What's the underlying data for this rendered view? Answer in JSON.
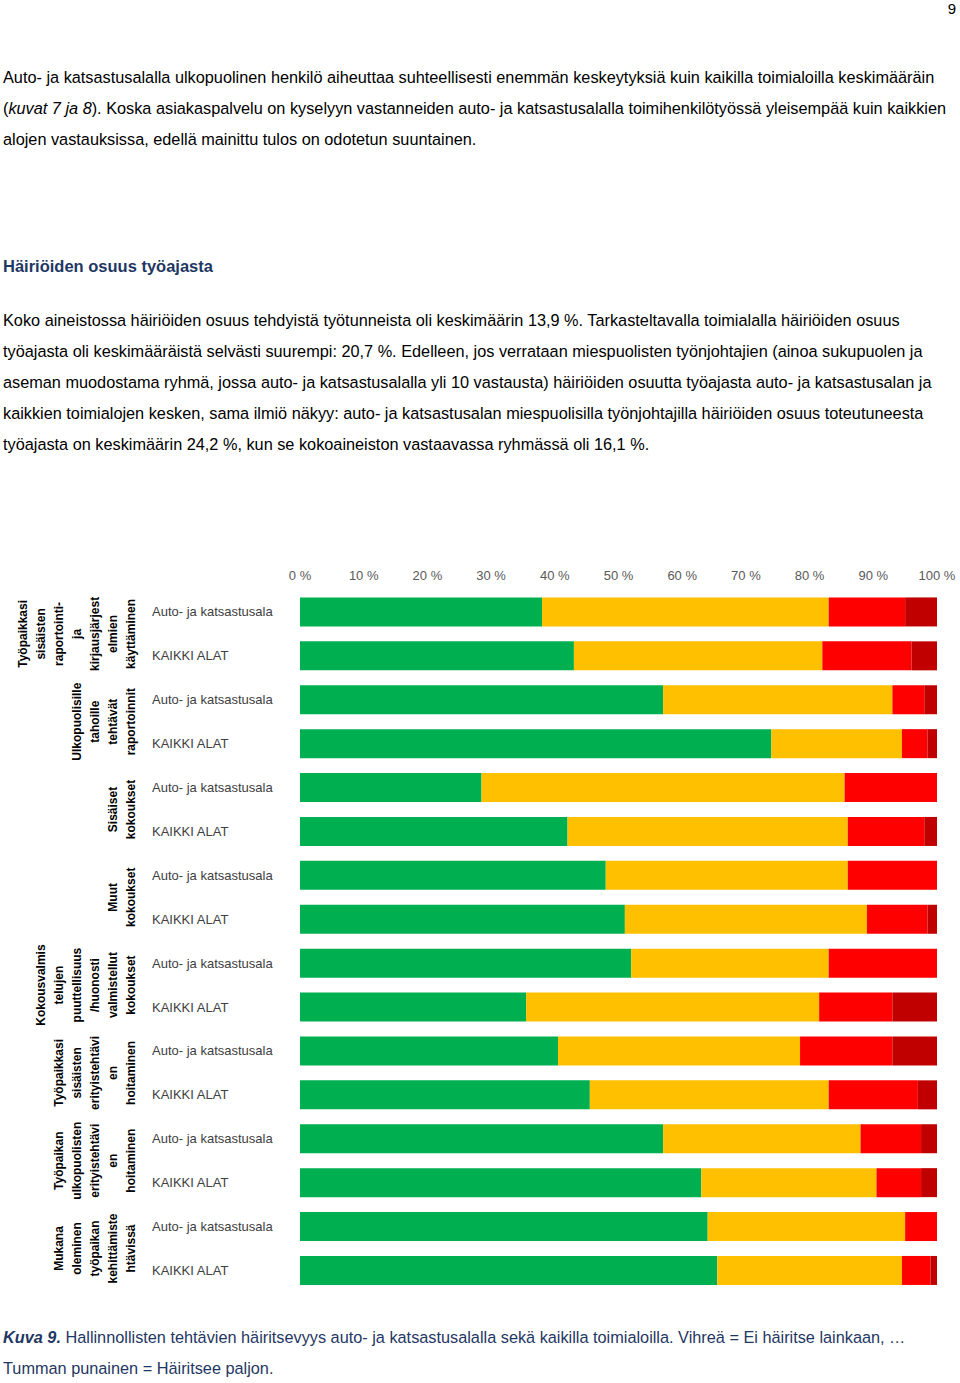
{
  "page": {
    "number": "9",
    "paragraph_1": [
      {
        "text": "Auto- ja katsastusalalla ulkopuolinen henkilö aiheuttaa suhteellisesti enemmän keskeytyksiä kuin kaikilla toimialoilla keskimääräin ("
      },
      {
        "text": "kuvat 7 ja 8",
        "italic": true
      },
      {
        "text": "). Koska asiakaspalvelu on kyselyyn vastanneiden auto- ja katsastusalalla toimihenkilötyössä yleisempää kuin kaikkien alojen vastauksissa, edellä mainittu tulos on odotetun suuntainen."
      }
    ],
    "heading": "Häiriöiden osuus työajasta",
    "paragraph_2": [
      {
        "text": "Koko aineistossa häiriöiden osuus tehdyistä työtunneista oli keskimäärin 13,9 %. Tarkasteltavalla toimialalla häiriöiden osuus työajasta oli keskimääräistä selvästi suurempi: 20,7 %. Edelleen, jos verrataan miespuolisten työnjohtajien (ainoa sukupuolen ja aseman muodostama ryhmä, jossa auto- ja katsastusalalla yli 10 vastausta) häiriöiden osuutta työajasta auto- ja katsastusalan ja kaikkien toimialojen kesken, sama ilmiö näkyy: auto- ja katsastusalan miespuolisilla työnjohtajilla häiriöiden osuus toteutuneesta työajasta on keskimäärin 24,2 %, kun se kokoaineiston vastaavassa ryhmässä oli 16,1 %."
      }
    ],
    "caption": [
      {
        "text": "Kuva 9.",
        "bold": true,
        "italic": true
      },
      {
        "text": " Hallinnollisten tehtävien häiritsevyys auto- ja katsastusalalla sekä kaikilla toimialoilla. Vihreä = Ei häiritse lainkaan, … Tumman punainen = Häiritsee paljon."
      }
    ]
  },
  "chart_data": {
    "type": "bar",
    "orientation": "horizontal",
    "stacked": true,
    "grid": false,
    "categories": [
      "Auto- ja katsastusala",
      "KAIKKI ALAT",
      "Auto- ja katsastusala",
      "KAIKKI ALAT",
      "Auto- ja katsastusala",
      "KAIKKI ALAT",
      "Auto- ja katsastusala",
      "KAIKKI ALAT",
      "Auto- ja katsastusala",
      "KAIKKI ALAT",
      "Auto- ja katsastusala",
      "KAIKKI ALAT",
      "Auto- ja katsastusala",
      "KAIKKI ALAT",
      "Auto- ja katsastusala",
      "KAIKKI ALAT"
    ],
    "category_groups": [
      {
        "label": [
          "Työpaikkasi",
          "sisäisten",
          "raportointi-",
          "ja",
          "kirjausjärjest",
          "elmien",
          "käyttäminen"
        ],
        "size": 2
      },
      {
        "label": [
          "Ulkopuolisille",
          "tahoille",
          "tehtävät",
          "raportoinnit"
        ],
        "size": 2
      },
      {
        "label": [
          "Sisäiset",
          "kokoukset"
        ],
        "size": 2
      },
      {
        "label": [
          "Muut",
          "kokoukset"
        ],
        "size": 2
      },
      {
        "label": [
          "Kokousvalmis",
          "telujen",
          "puuttellisuus",
          "/huonosti",
          "valmistellut",
          "kokoukset"
        ],
        "size": 2
      },
      {
        "label": [
          "Työpaikkasi",
          "sisäisten",
          "erityistehtävi",
          "en",
          "hoitaminen"
        ],
        "size": 2
      },
      {
        "label": [
          "Työpaikan",
          "ulkopuolisten",
          "erityistehtävi",
          "en",
          "hoitaminen"
        ],
        "size": 2
      },
      {
        "label": [
          "Mukana",
          "oleminen",
          "työpaikan",
          "kehittämiste",
          "htävissä"
        ],
        "size": 2
      }
    ],
    "series": [
      {
        "color": "#00B050",
        "values": [
          38,
          43,
          57,
          74,
          28.5,
          42,
          48,
          51,
          52,
          35.5,
          40.5,
          45.5,
          57,
          63,
          64,
          65.5
        ]
      },
      {
        "color": "#FFC000",
        "values": [
          45,
          39,
          36,
          20.5,
          57,
          44,
          38,
          38,
          31,
          46,
          38,
          37.5,
          31,
          27.5,
          31,
          29
        ]
      },
      {
        "color": "#FF0000",
        "values": [
          12,
          14,
          5,
          4,
          14.5,
          12,
          14,
          9.5,
          17,
          11.5,
          14.5,
          14,
          9.5,
          7,
          5,
          4.5
        ]
      },
      {
        "color": "#C00000",
        "values": [
          5,
          4,
          2,
          1.5,
          0,
          2,
          0,
          1.5,
          0,
          7,
          7,
          3,
          2.5,
          2.5,
          0,
          1
        ]
      }
    ],
    "xlim": [
      0,
      100
    ],
    "xticks": [
      {
        "value": 0,
        "label": "0 %"
      },
      {
        "value": 10,
        "label": "10 %"
      },
      {
        "value": 20,
        "label": "20 %"
      },
      {
        "value": 30,
        "label": "30 %"
      },
      {
        "value": 40,
        "label": "40 %"
      },
      {
        "value": 50,
        "label": "50 %"
      },
      {
        "value": 60,
        "label": "60 %"
      },
      {
        "value": 70,
        "label": "70 %"
      },
      {
        "value": 80,
        "label": "80 %"
      },
      {
        "value": 90,
        "label": "90 %"
      },
      {
        "value": 100,
        "label": "100 %"
      }
    ]
  }
}
